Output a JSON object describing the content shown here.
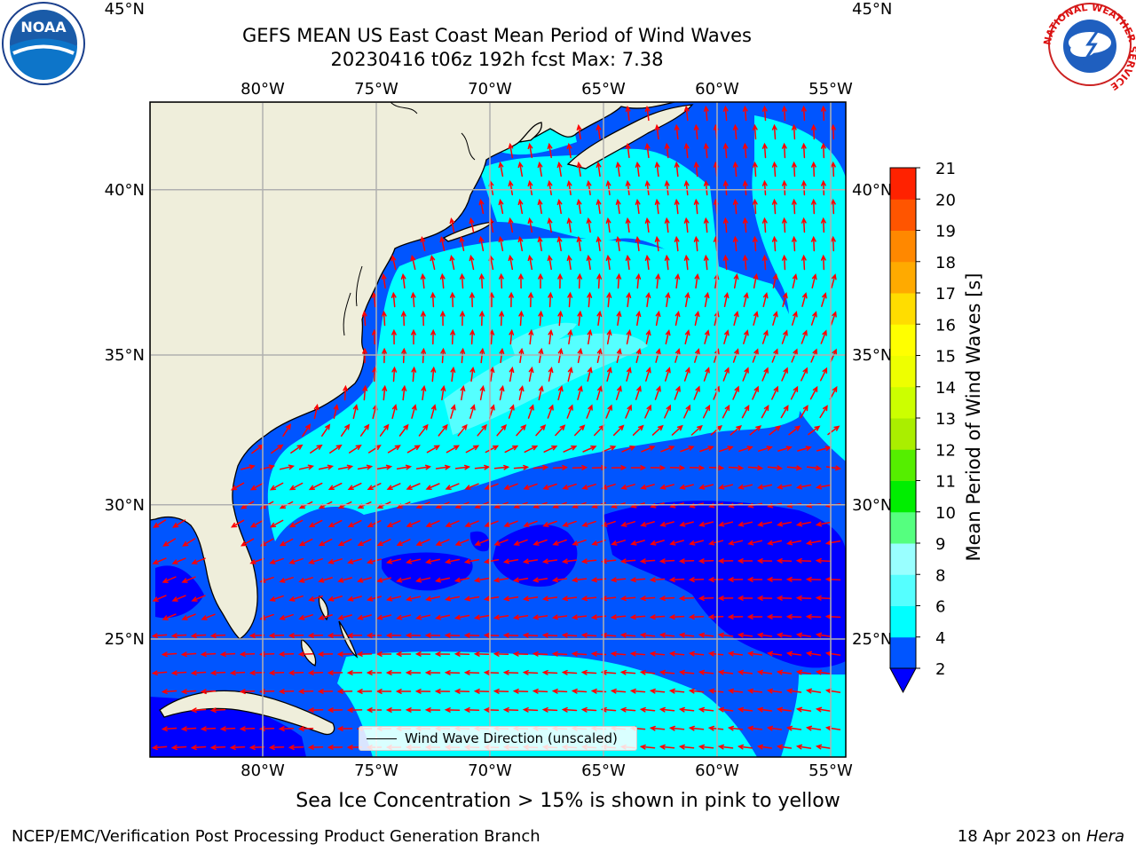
{
  "title": {
    "line1": "GEFS MEAN US East Coast Mean Period of Wind Waves",
    "line2": "20230416 t06z 192h fcst   Max: 7.38"
  },
  "map": {
    "lon_labels": [
      "80°W",
      "75°W",
      "70°W",
      "65°W",
      "60°W",
      "55°W"
    ],
    "lon_values": [
      -80,
      -75,
      -70,
      -65,
      -60,
      -55
    ],
    "lat_labels": [
      "45°N",
      "40°N",
      "35°N",
      "30°N",
      "25°N"
    ],
    "lat_values": [
      45,
      40,
      35,
      30,
      25
    ],
    "colors": {
      "land": "#efeedb",
      "coast": "#000000",
      "grid": "#b0b0b0",
      "arrow": "#ff0000"
    }
  },
  "legend": {
    "label": "Wind Wave Direction (unscaled)"
  },
  "colorbar": {
    "title": "Mean Period of Wind Waves [s]",
    "ticks": [
      "2",
      "4",
      "6",
      "8",
      "9",
      "10",
      "11",
      "12",
      "13",
      "14",
      "15",
      "16",
      "17",
      "18",
      "19",
      "20",
      "21"
    ],
    "colors": [
      "#0055ff",
      "#00ffff",
      "#55ffff",
      "#99ffff",
      "#55ff7f",
      "#00ee00",
      "#55ee00",
      "#aaee00",
      "#ccff00",
      "#eeff00",
      "#ffff00",
      "#ffdd00",
      "#ffaa00",
      "#ff8800",
      "#ff5500",
      "#ff2200"
    ],
    "under_color": "#0000ff"
  },
  "note": "Sea Ice Concentration > 15% is shown in pink to yellow",
  "footer": {
    "left": "NCEP/EMC/Verification Post Processing Product Generation Branch",
    "right_date": "18 Apr 2023 on ",
    "right_machine": "Hera"
  },
  "logos": {
    "left": "NOAA",
    "right": "NATIONAL WEATHER SERVICE"
  }
}
